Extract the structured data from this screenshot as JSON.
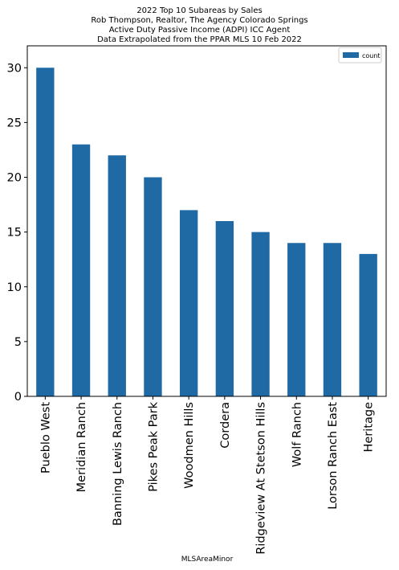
{
  "colors": {
    "bar": "#1f6aa5",
    "axis": "#000000",
    "legend_border": "#cccccc"
  },
  "chart_data": {
    "type": "bar",
    "title_lines": [
      "2022 Top 10 Subareas by Sales",
      "Rob Thompson, Realtor, The Agency Colorado Springs",
      "Active Duty Passive Income (ADPI) ICC Agent",
      "Data Extrapolated from the PPAR MLS 10 Feb 2022"
    ],
    "xlabel": "MLSAreaMinor",
    "ylabel": "",
    "ylim": [
      0,
      32
    ],
    "yticks": [
      0,
      5,
      10,
      15,
      20,
      25,
      30
    ],
    "categories": [
      "Pueblo West",
      "Meridian Ranch",
      "Banning Lewis Ranch",
      "Pikes Peak Park",
      "Woodmen Hills",
      "Cordera",
      "Ridgeview At Stetson Hills",
      "Wolf Ranch",
      "Lorson Ranch East",
      "Heritage"
    ],
    "series": [
      {
        "name": "count",
        "values": [
          30,
          23,
          22,
          20,
          17,
          16,
          15,
          14,
          14,
          13
        ]
      }
    ],
    "legend": {
      "position": "top-right",
      "entries": [
        "count"
      ]
    },
    "grid": false
  }
}
